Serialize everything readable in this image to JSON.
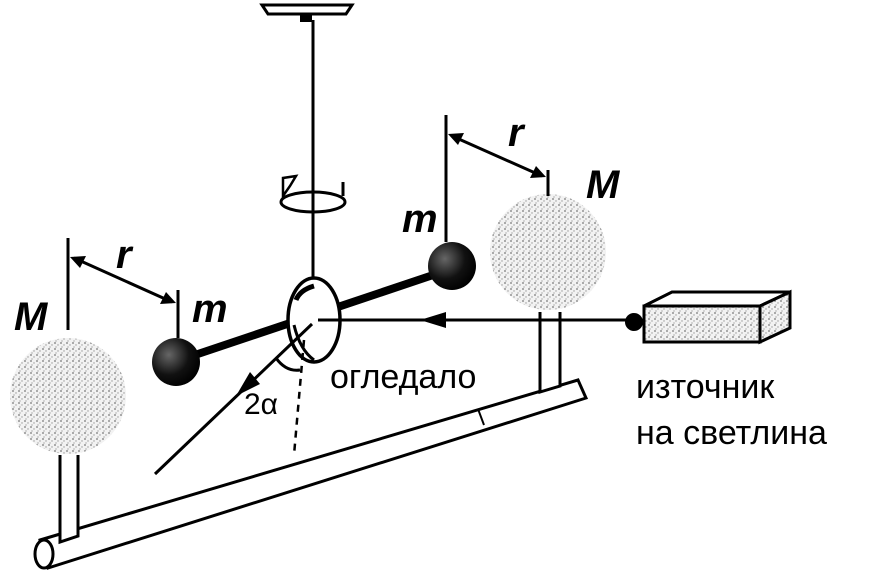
{
  "labels": {
    "mass_large_left": "M",
    "mass_large_right": "M",
    "mass_small_left": "m",
    "mass_small_right": "m",
    "distance_left": "r",
    "distance_right": "r",
    "mirror": "огледало",
    "angle": "2α",
    "light_source_line1": "източник",
    "light_source_line2": "на светлина"
  },
  "colors": {
    "ink": "#000000",
    "sphere_fill": "#e8e8e8",
    "background": "#ffffff"
  },
  "icons": {
    "rotation": "rotation-arrow-icon"
  }
}
